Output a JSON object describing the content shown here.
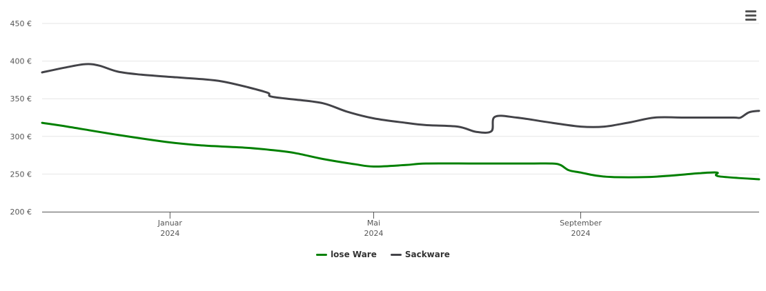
{
  "chart_data": {
    "type": "line",
    "title": "",
    "xlabel": "",
    "ylabel": "",
    "ylim": [
      200,
      450
    ],
    "yticks": [
      200,
      250,
      300,
      350,
      400,
      450
    ],
    "ytick_labels": [
      "200 €",
      "250 €",
      "300 €",
      "350 €",
      "400 €",
      "450 €"
    ],
    "xlim": [
      "2023-10-17",
      "2024-12-16"
    ],
    "xticks": [
      {
        "date": "2024-01-01",
        "month": "Januar",
        "year": "2024"
      },
      {
        "date": "2024-05-01",
        "month": "Mai",
        "year": "2024"
      },
      {
        "date": "2024-09-01",
        "month": "September",
        "year": "2024"
      }
    ],
    "grid": true,
    "legend": "bottom-center",
    "series": [
      {
        "name": "lose Ware",
        "color": "#008000",
        "points": [
          [
            "2023-10-17",
            318
          ],
          [
            "2023-11-01",
            313
          ],
          [
            "2023-12-01",
            302
          ],
          [
            "2024-01-01",
            292
          ],
          [
            "2024-01-20",
            288
          ],
          [
            "2024-02-15",
            285
          ],
          [
            "2024-03-01",
            282
          ],
          [
            "2024-03-15",
            278
          ],
          [
            "2024-04-01",
            270
          ],
          [
            "2024-04-20",
            263
          ],
          [
            "2024-05-01",
            260
          ],
          [
            "2024-05-20",
            262
          ],
          [
            "2024-06-01",
            264
          ],
          [
            "2024-07-01",
            264
          ],
          [
            "2024-08-01",
            264
          ],
          [
            "2024-08-15",
            264
          ],
          [
            "2024-08-20",
            262
          ],
          [
            "2024-08-25",
            255
          ],
          [
            "2024-09-01",
            252
          ],
          [
            "2024-09-10",
            248
          ],
          [
            "2024-09-20",
            246
          ],
          [
            "2024-10-10",
            246
          ],
          [
            "2024-10-25",
            248
          ],
          [
            "2024-11-10",
            251
          ],
          [
            "2024-11-21",
            252
          ],
          [
            "2024-11-22",
            247
          ],
          [
            "2024-12-16",
            243
          ]
        ]
      },
      {
        "name": "Sackware",
        "color": "#434348",
        "points": [
          [
            "2023-10-17",
            385
          ],
          [
            "2023-11-01",
            392
          ],
          [
            "2023-11-12",
            396
          ],
          [
            "2023-11-20",
            394
          ],
          [
            "2023-12-01",
            386
          ],
          [
            "2023-12-15",
            382
          ],
          [
            "2024-01-01",
            379
          ],
          [
            "2024-01-20",
            376
          ],
          [
            "2024-02-01",
            373
          ],
          [
            "2024-02-15",
            366
          ],
          [
            "2024-02-28",
            358
          ],
          [
            "2024-03-01",
            353
          ],
          [
            "2024-03-15",
            349
          ],
          [
            "2024-04-01",
            344
          ],
          [
            "2024-04-15",
            333
          ],
          [
            "2024-05-01",
            324
          ],
          [
            "2024-05-20",
            318
          ],
          [
            "2024-06-01",
            315
          ],
          [
            "2024-06-20",
            313
          ],
          [
            "2024-07-01",
            306
          ],
          [
            "2024-07-10",
            307
          ],
          [
            "2024-07-12",
            326
          ],
          [
            "2024-07-25",
            325
          ],
          [
            "2024-08-15",
            318
          ],
          [
            "2024-09-01",
            313
          ],
          [
            "2024-09-15",
            313
          ],
          [
            "2024-10-01",
            319
          ],
          [
            "2024-10-15",
            325
          ],
          [
            "2024-11-01",
            325
          ],
          [
            "2024-11-15",
            325
          ],
          [
            "2024-12-01",
            325
          ],
          [
            "2024-12-05",
            325
          ],
          [
            "2024-12-10",
            332
          ],
          [
            "2024-12-16",
            334
          ]
        ]
      }
    ]
  },
  "menu": {
    "icon": "hamburger-menu-icon"
  }
}
